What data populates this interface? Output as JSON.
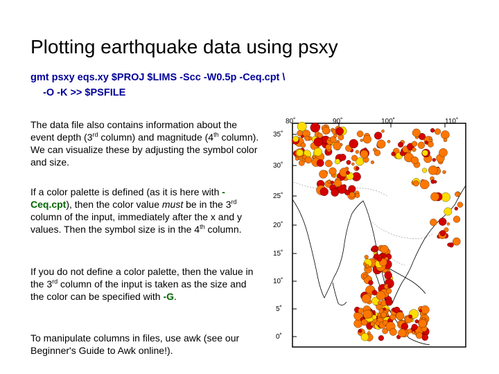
{
  "title": "Plotting earthquake data using psxy",
  "command": {
    "line1": "gmt psxy eqs.xy $PROJ $LIMS -Scc -W0.5p -Ceq.cpt \\",
    "line2": "-O -K >> $PSFILE"
  },
  "p1": {
    "a": "The data file also contains information about the event depth (3",
    "sup1": "rd",
    "b": " column) and magnitude (4",
    "sup2": "th",
    "c": " column). We can visualize these by adjusting the symbol color and size."
  },
  "p2": {
    "a": "If a color palette is defined (as it is here with ",
    "code": "-Ceq.cpt",
    "b": "), then the color value ",
    "em": "must",
    "c": " be in the 3",
    "sup1": "rd",
    "d": " column of the input, immediately after the x and y values. Then the symbol size is in the 4",
    "sup2": "th",
    "e": " column."
  },
  "p3": {
    "a": "If you do not define a color palette, then the value in the 3",
    "sup1": "rd",
    "b": " column of the input is taken as the size and the color can be specified with ",
    "code": "-G",
    "c": "."
  },
  "p4": {
    "text": "To manipulate columns in files, use awk (see our Beginner's Guide to Awk online!)."
  },
  "map": {
    "lon_labels": [
      "80˚",
      "90˚",
      "100˚",
      "110˚"
    ],
    "lat_labels": [
      "35˚",
      "30˚",
      "25˚",
      "20˚",
      "15˚",
      "10˚",
      "5˚",
      "0˚"
    ],
    "colors": {
      "shallow": "#d40000",
      "mid": "#ff7700",
      "deep": "#ffdd00",
      "coast": "#000000"
    }
  }
}
